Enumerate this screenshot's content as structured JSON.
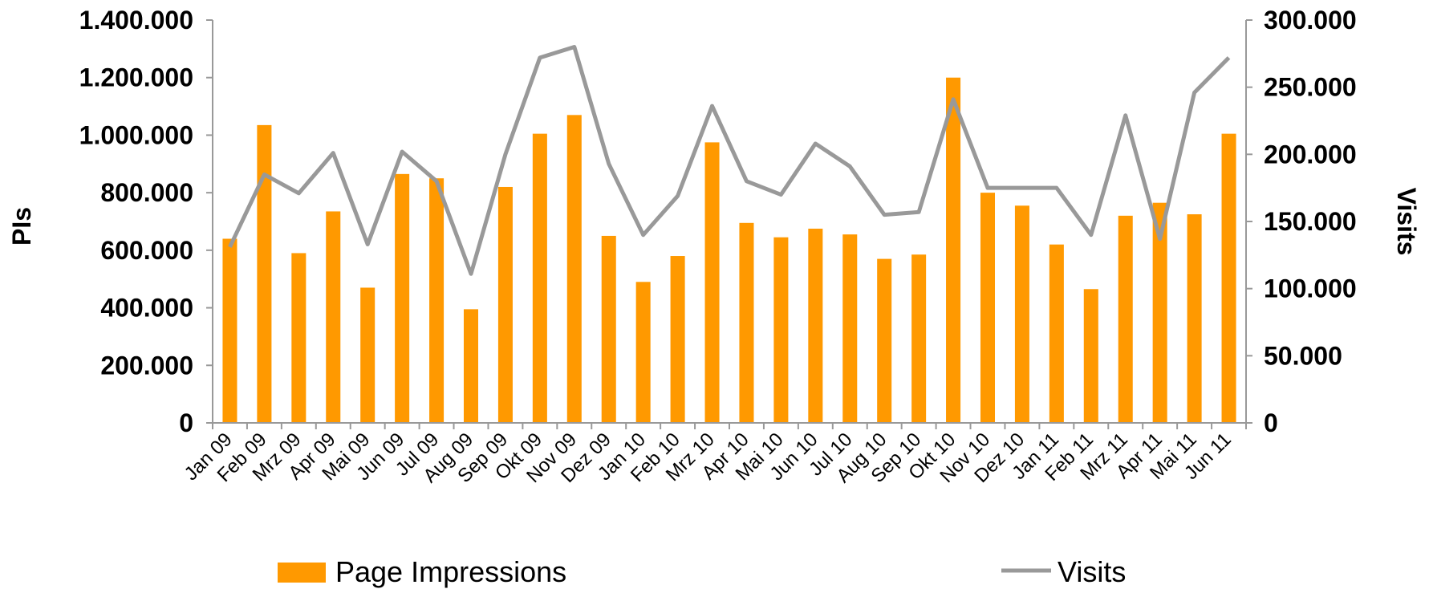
{
  "chart_data": {
    "type": "bar",
    "categories": [
      "Jan 09",
      "Feb 09",
      "Mrz 09",
      "Apr 09",
      "Mai 09",
      "Jun 09",
      "Jul 09",
      "Aug 09",
      "Sep 09",
      "Okt 09",
      "Nov 09",
      "Dez 09",
      "Jan 10",
      "Feb 10",
      "Mrz 10",
      "Apr 10",
      "Mai 10",
      "Jun 10",
      "Jul 10",
      "Aug 10",
      "Sep 10",
      "Okt 10",
      "Nov 10",
      "Dez 10",
      "Jan 11",
      "Feb 11",
      "Mrz 11",
      "Apr 11",
      "Mai 11",
      "Jun 11"
    ],
    "series": [
      {
        "name": "Page Impressions",
        "type": "bar",
        "axis": "left",
        "color": "#FF9900",
        "values": [
          640000,
          1035000,
          590000,
          735000,
          470000,
          865000,
          850000,
          395000,
          820000,
          1005000,
          1070000,
          650000,
          490000,
          580000,
          975000,
          695000,
          645000,
          675000,
          655000,
          570000,
          585000,
          1200000,
          800000,
          755000,
          620000,
          465000,
          720000,
          765000,
          725000,
          1005000
        ]
      },
      {
        "name": "Visits",
        "type": "line",
        "axis": "right",
        "color": "#999999",
        "values": [
          131000,
          185000,
          171000,
          201000,
          133000,
          202000,
          180000,
          111000,
          200000,
          272000,
          280000,
          193000,
          140000,
          169000,
          236000,
          180000,
          170000,
          208000,
          191000,
          155000,
          157000,
          241000,
          175000,
          175000,
          175000,
          140000,
          229000,
          137000,
          246000,
          272000
        ]
      }
    ],
    "ylabel_left": "PIs",
    "ylabel_right": "Visits",
    "ylim_left": [
      0,
      1400000
    ],
    "ylim_right": [
      0,
      300000
    ],
    "yticks_left": [
      "0",
      "200.000",
      "400.000",
      "600.000",
      "800.000",
      "1.000.000",
      "1.200.000",
      "1.400.000"
    ],
    "yticks_right": [
      "0",
      "50.000",
      "100.000",
      "150.000",
      "200.000",
      "250.000",
      "300.000"
    ],
    "grid": false,
    "legend_position": "bottom"
  }
}
